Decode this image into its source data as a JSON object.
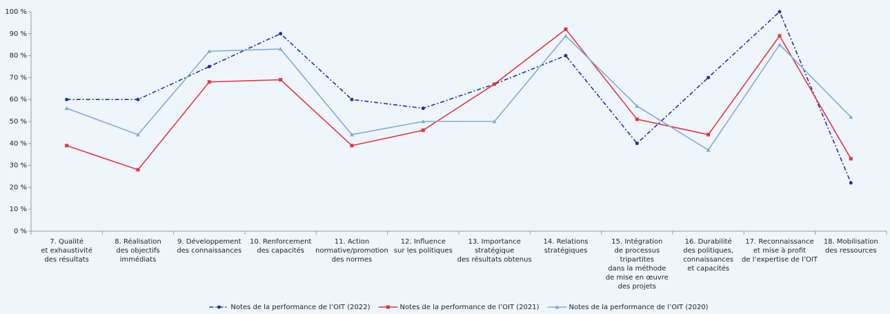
{
  "chart_data": {
    "type": "line",
    "categories": [
      [
        "7. Qualité",
        "et exhaustivité",
        "des résultats"
      ],
      [
        "8. Réalisation",
        "des objectifs",
        "immédiats"
      ],
      [
        "9. Développement",
        "des connaissances"
      ],
      [
        "10. Renforcement",
        "des capacités"
      ],
      [
        "11. Action",
        "normative/promotion",
        "des normes"
      ],
      [
        "12. Influence",
        "sur les politiques"
      ],
      [
        "13. Importance",
        "stratégique",
        "des résultats obtenus"
      ],
      [
        "14. Relations",
        "stratégiques"
      ],
      [
        "15. Intégration",
        "de processus",
        "tripartites",
        "dans la méthode",
        "de mise en œuvre",
        "des projets"
      ],
      [
        "16. Durabilité",
        "des politiques,",
        "connaissances",
        "et capacités"
      ],
      [
        "17. Reconnaissance",
        "et mise à profit",
        "de l’expertise de l’OIT"
      ],
      [
        "18. Mobilisation",
        "des ressources"
      ]
    ],
    "series": [
      {
        "name": "Notes de la performance de l’OIT (2022)",
        "color": "#1f2f9f",
        "values": [
          60,
          60,
          75,
          90,
          60,
          56,
          67,
          80,
          40,
          70,
          100,
          22
        ]
      },
      {
        "name": "Notes de la performance de l’OIT (2021)",
        "color": "#e8323c",
        "values": [
          39,
          28,
          68,
          69,
          39,
          46,
          67,
          92,
          51,
          44,
          89,
          33
        ]
      },
      {
        "name": "Notes de la performance de l’OIT (2020)",
        "color": "#82aad2",
        "values": [
          56,
          44,
          82,
          83,
          44,
          50,
          50,
          89,
          57,
          37,
          85,
          52
        ]
      }
    ],
    "ylim": [
      0,
      100
    ],
    "yticks": [
      {
        "value": 0,
        "label": "0 %"
      },
      {
        "value": 10,
        "label": "10 %"
      },
      {
        "value": 20,
        "label": "20 %"
      },
      {
        "value": 30,
        "label": "30 %"
      },
      {
        "value": 40,
        "label": "40 %"
      },
      {
        "value": 50,
        "label": "50 %"
      },
      {
        "value": 60,
        "label": "60 %"
      },
      {
        "value": 70,
        "label": "70 %"
      },
      {
        "value": 80,
        "label": "80 %"
      },
      {
        "value": 90,
        "label": "90 %"
      },
      {
        "value": 100,
        "label": "100 %"
      }
    ],
    "legend": "bottom"
  }
}
